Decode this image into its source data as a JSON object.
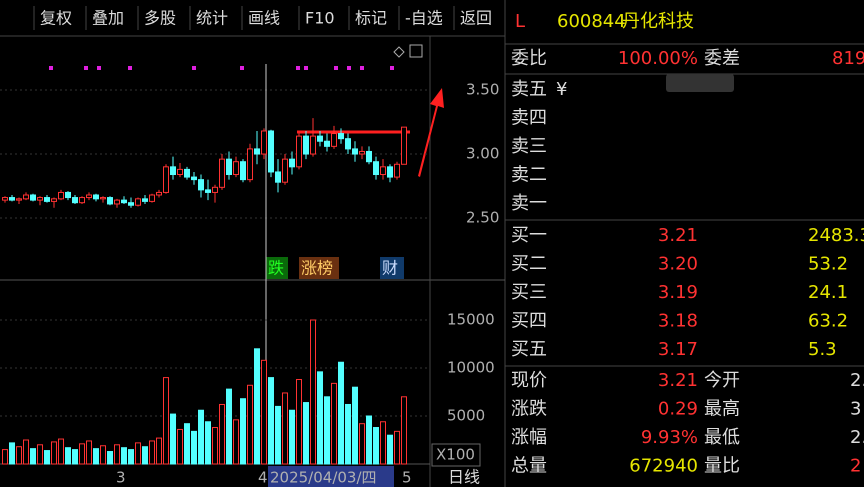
{
  "toolbar": [
    "复权",
    "叠加",
    "多股",
    "统计",
    "画线",
    "F10",
    "标记",
    "-自选",
    "返回"
  ],
  "chart_data": [
    {
      "type": "candlestick",
      "ylim": [
        2.016,
        3.922
      ],
      "yticks": [
        {
          "value": 2.5,
          "label": "2.50"
        },
        {
          "value": 3.0,
          "label": "3.00"
        },
        {
          "value": 3.5,
          "label": "3.50"
        }
      ],
      "up_color": "#ff3232",
      "down_color": "#54ffff",
      "ohlc": [
        [
          2.64,
          2.67,
          2.62,
          2.66
        ],
        [
          2.66,
          2.68,
          2.63,
          2.64
        ],
        [
          2.64,
          2.66,
          2.61,
          2.65
        ],
        [
          2.65,
          2.7,
          2.64,
          2.68
        ],
        [
          2.68,
          2.69,
          2.63,
          2.64
        ],
        [
          2.64,
          2.67,
          2.6,
          2.66
        ],
        [
          2.66,
          2.68,
          2.62,
          2.63
        ],
        [
          2.63,
          2.66,
          2.58,
          2.65
        ],
        [
          2.65,
          2.72,
          2.64,
          2.7
        ],
        [
          2.7,
          2.71,
          2.64,
          2.66
        ],
        [
          2.66,
          2.68,
          2.61,
          2.62
        ],
        [
          2.62,
          2.67,
          2.61,
          2.66
        ],
        [
          2.66,
          2.7,
          2.64,
          2.68
        ],
        [
          2.68,
          2.69,
          2.63,
          2.65
        ],
        [
          2.65,
          2.67,
          2.62,
          2.66
        ],
        [
          2.66,
          2.67,
          2.6,
          2.61
        ],
        [
          2.61,
          2.65,
          2.58,
          2.64
        ],
        [
          2.64,
          2.67,
          2.61,
          2.62
        ],
        [
          2.62,
          2.66,
          2.58,
          2.6
        ],
        [
          2.6,
          2.66,
          2.59,
          2.65
        ],
        [
          2.65,
          2.68,
          2.61,
          2.63
        ],
        [
          2.63,
          2.69,
          2.62,
          2.68
        ],
        [
          2.68,
          2.72,
          2.66,
          2.7
        ],
        [
          2.7,
          2.92,
          2.69,
          2.9
        ],
        [
          2.9,
          2.98,
          2.8,
          2.84
        ],
        [
          2.84,
          2.93,
          2.82,
          2.88
        ],
        [
          2.88,
          2.9,
          2.8,
          2.82
        ],
        [
          2.82,
          2.86,
          2.76,
          2.8
        ],
        [
          2.8,
          2.84,
          2.66,
          2.72
        ],
        [
          2.72,
          2.8,
          2.64,
          2.7
        ],
        [
          2.7,
          2.76,
          2.62,
          2.74
        ],
        [
          2.74,
          3.0,
          2.72,
          2.96
        ],
        [
          2.96,
          3.02,
          2.8,
          2.84
        ],
        [
          2.84,
          2.98,
          2.82,
          2.94
        ],
        [
          2.94,
          2.96,
          2.78,
          2.8
        ],
        [
          2.8,
          3.08,
          2.78,
          3.04
        ],
        [
          3.04,
          3.18,
          2.92,
          3.0
        ],
        [
          3.0,
          3.2,
          2.96,
          3.18
        ],
        [
          3.18,
          3.19,
          2.82,
          2.86
        ],
        [
          2.86,
          2.96,
          2.7,
          2.78
        ],
        [
          2.78,
          3.0,
          2.76,
          2.96
        ],
        [
          2.96,
          3.02,
          2.84,
          2.9
        ],
        [
          2.9,
          3.16,
          2.88,
          3.14
        ],
        [
          3.14,
          3.18,
          2.96,
          3.0
        ],
        [
          3.0,
          3.28,
          2.98,
          3.14
        ],
        [
          3.14,
          3.18,
          3.06,
          3.1
        ],
        [
          3.1,
          3.16,
          3.02,
          3.06
        ],
        [
          3.06,
          3.22,
          3.04,
          3.16
        ],
        [
          3.16,
          3.2,
          3.08,
          3.12
        ],
        [
          3.12,
          3.16,
          3.0,
          3.04
        ],
        [
          3.04,
          3.1,
          2.94,
          3.0
        ],
        [
          3.0,
          3.06,
          2.96,
          3.02
        ],
        [
          3.02,
          3.06,
          2.92,
          2.94
        ],
        [
          2.94,
          2.98,
          2.8,
          2.84
        ],
        [
          2.84,
          2.96,
          2.8,
          2.9
        ],
        [
          2.9,
          2.92,
          2.78,
          2.82
        ],
        [
          2.82,
          2.94,
          2.8,
          2.92
        ],
        [
          2.92,
          3.21,
          2.92,
          3.21
        ]
      ]
    },
    {
      "type": "bar",
      "ylim": [
        0,
        18958
      ],
      "yticks": [
        5000,
        10000,
        15000
      ],
      "unit_label": "X100",
      "values": [
        1500,
        2200,
        1800,
        2500,
        1600,
        2000,
        1400,
        2300,
        2600,
        1700,
        1500,
        2100,
        2400,
        1600,
        1900,
        1300,
        2000,
        1700,
        1500,
        2200,
        1800,
        2400,
        2700,
        9000,
        5200,
        3600,
        4200,
        3400,
        5600,
        4400,
        3800,
        6200,
        7800,
        4600,
        6800,
        8200,
        12000,
        10800,
        9000,
        6000,
        7400,
        5600,
        8800,
        6400,
        15000,
        9600,
        7000,
        8400,
        10600,
        6200,
        8000,
        4200,
        5000,
        3800,
        4400,
        3000,
        3400,
        7000
      ]
    }
  ],
  "x_labels": [
    "3",
    "4",
    "2025/04/03/四",
    "5"
  ],
  "period": "日线",
  "event_tags": [
    "跌",
    "涨榜",
    "财"
  ],
  "quote": {
    "code_prefix": "L",
    "code": "600844",
    "name": "丹化科技",
    "wb_label": "委比",
    "wb": "100.00%",
    "wc_label": "委差",
    "wc": "819",
    "sell": [
      "卖五",
      "卖四",
      "卖三",
      "卖二",
      "卖一"
    ],
    "sell_mark": "¥",
    "buy": [
      [
        "买一",
        "3.21",
        "2483.3"
      ],
      [
        "买二",
        "3.20",
        "53.2"
      ],
      [
        "买三",
        "3.19",
        "24.1"
      ],
      [
        "买四",
        "3.18",
        "63.2"
      ],
      [
        "买五",
        "3.17",
        "5.3"
      ]
    ],
    "stats": [
      [
        "现价",
        "3.21",
        "今开",
        "2."
      ],
      [
        "涨跌",
        "0.29",
        "最高",
        "3"
      ],
      [
        "涨幅",
        "9.93%",
        "最低",
        "2."
      ],
      [
        "总量",
        "672940",
        "量比",
        "2"
      ]
    ]
  }
}
